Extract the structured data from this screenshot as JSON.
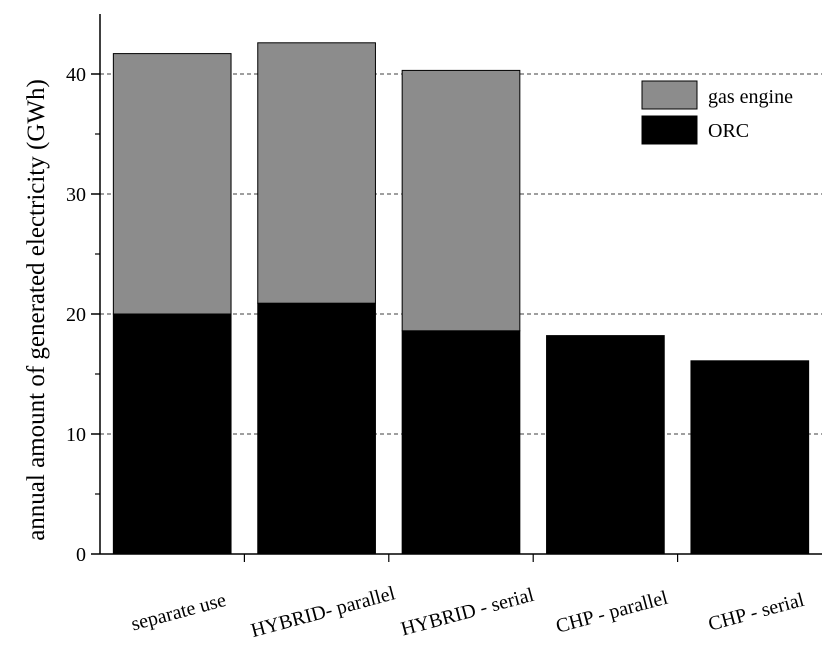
{
  "chart_data": {
    "type": "bar",
    "stacked": true,
    "categories": [
      "separate use",
      "HYBRID- parallel",
      "HYBRID - serial",
      "CHP - parallel",
      "CHP - serial"
    ],
    "series": [
      {
        "name": "ORC",
        "values": [
          20,
          20.9,
          18.6,
          18.2,
          16.1
        ],
        "color": "#000000"
      },
      {
        "name": "gas engine",
        "values": [
          21.7,
          21.7,
          21.7,
          0,
          0
        ],
        "color": "#8c8c8c"
      }
    ],
    "xlabel": "",
    "ylabel": "annual amount of generated electricity (GWh)",
    "ylim": [
      0,
      45
    ],
    "yticks": [
      0,
      10,
      20,
      30,
      40
    ],
    "grid": "horizontal dashed",
    "legend_position": "top-right",
    "legend_entries": [
      "gas engine",
      "ORC"
    ]
  }
}
